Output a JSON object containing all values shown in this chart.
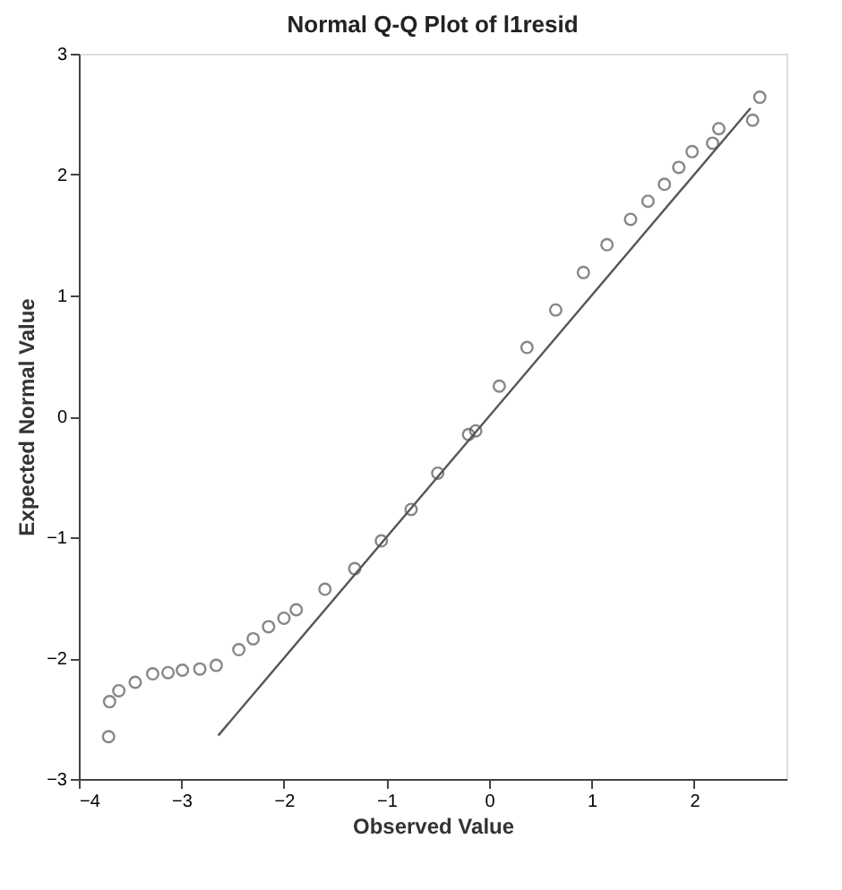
{
  "chart_data": {
    "type": "scatter",
    "title": "Normal Q-Q Plot of l1resid",
    "xlabel": "Observed Value",
    "ylabel": "Expected Normal Value",
    "xlim": [
      -4,
      2.9
    ],
    "ylim": [
      -3,
      3
    ],
    "xticks": [
      -4,
      -3,
      -2,
      -1,
      0,
      1,
      2
    ],
    "yticks": [
      -3,
      -2,
      -1,
      0,
      1,
      2,
      3
    ],
    "series": [
      {
        "marker": "circle",
        "color": "#555555",
        "x": [
          -3.71,
          -3.7,
          -3.61,
          -3.45,
          -3.28,
          -3.13,
          -2.99,
          -2.82,
          -2.66,
          -2.44,
          -2.3,
          -2.15,
          -2.0,
          -1.88,
          -1.6,
          -1.31,
          -1.05,
          -0.76,
          -0.5,
          -0.2,
          -0.13,
          0.1,
          0.37,
          0.65,
          0.92,
          1.15,
          1.38,
          1.55,
          1.71,
          1.85,
          1.98,
          2.18,
          2.24,
          2.57,
          2.64
        ],
        "values": [
          -2.65,
          -2.36,
          -2.27,
          -2.2,
          -2.13,
          -2.12,
          -2.1,
          -2.09,
          -2.06,
          -1.93,
          -1.84,
          -1.74,
          -1.67,
          -1.6,
          -1.43,
          -1.26,
          -1.03,
          -0.77,
          -0.47,
          -0.15,
          -0.12,
          0.25,
          0.57,
          0.88,
          1.19,
          1.42,
          1.63,
          1.78,
          1.92,
          2.06,
          2.19,
          2.26,
          2.38,
          2.45,
          2.64
        ]
      },
      {
        "type": "line",
        "color": "#555555",
        "x": [
          -2.64,
          2.55
        ],
        "values": [
          -2.64,
          2.55
        ]
      }
    ]
  }
}
